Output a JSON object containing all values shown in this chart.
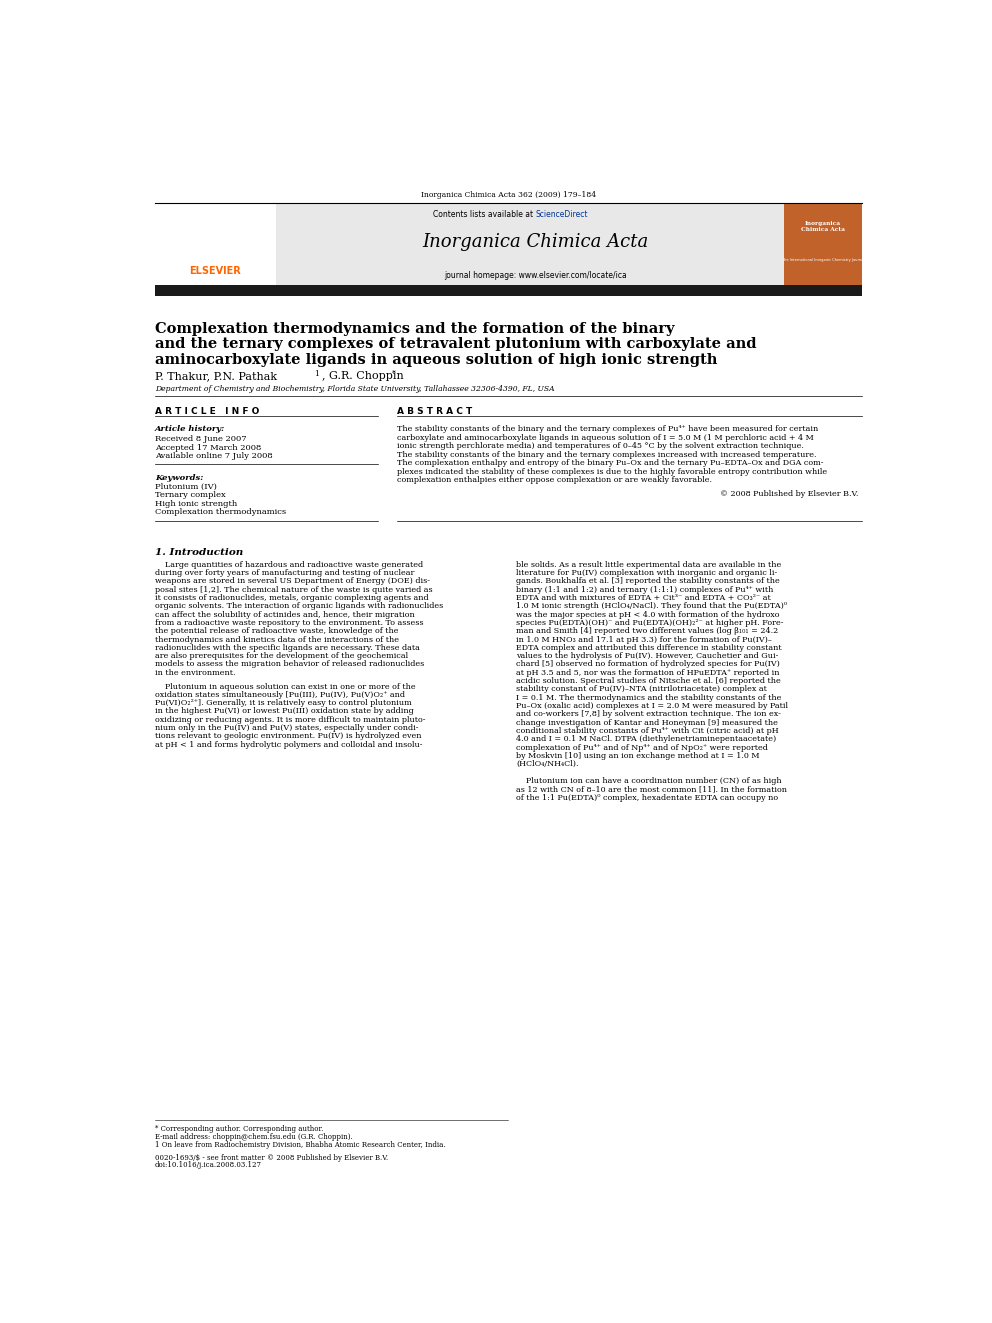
{
  "background_color": "#ffffff",
  "page_width": 9.92,
  "page_height": 13.23,
  "header_journal_ref": "Inorganica Chimica Acta 362 (2009) 179–184",
  "header_contents": "Contents lists available at",
  "header_sciencedirect": "ScienceDirect",
  "header_journal_name": "Inorganica Chimica Acta",
  "header_homepage": "journal homepage: www.elsevier.com/locate/ica",
  "thick_bar_color": "#1a1a1a",
  "elsevier_color": "#FF6600",
  "sciencedirect_color": "#003399",
  "article_title_line1": "Complexation thermodynamics and the formation of the binary",
  "article_title_line2": "and the ternary complexes of tetravalent plutonium with carboxylate and",
  "article_title_line3": "aminocarboxylate ligands in aqueous solution of high ionic strength",
  "authors": "P. Thakur, P.N. Pathak",
  "author_sup1": "1",
  "authors2": ", G.R. Choppin",
  "author_star": "*",
  "affiliation": "Department of Chemistry and Biochemistry, Florida State University, Tallahassee 32306-4390, FL, USA",
  "section_article_info": "A R T I C L E   I N F O",
  "section_abstract": "A B S T R A C T",
  "article_history_label": "Article history:",
  "received": "Received 8 June 2007",
  "accepted": "Accepted 17 March 2008",
  "available": "Available online 7 July 2008",
  "keywords_label": "Keywords:",
  "keyword1": "Plutonium (IV)",
  "keyword2": "Ternary complex",
  "keyword3": "High ionic strength",
  "keyword4": "Complexation thermodynamics",
  "copyright_text": "© 2008 Published by Elsevier B.V.",
  "section_intro": "1. Introduction",
  "footnote_star": "* Corresponding author.",
  "footnote_email": "E-mail address: choppin@chem.fsu.edu (G.R. Choppin).",
  "footnote_1": "1 On leave from Radiochemistry Division, Bhabha Atomic Research Center, India.",
  "issn_text": "0020-1693/$ - see front matter © 2008 Published by Elsevier B.V.",
  "doi_text": "doi:10.1016/j.ica.2008.03.127",
  "header_bg_color": "#e8e8e8",
  "journal_cover_bg": "#c0622a"
}
